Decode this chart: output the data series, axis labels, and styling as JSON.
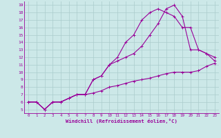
{
  "xlabel": "Windchill (Refroidissement éolien,°C)",
  "bg_color": "#cce8e8",
  "grid_color": "#aacccc",
  "line_color": "#990099",
  "xlim": [
    -0.5,
    23.5
  ],
  "ylim": [
    4.5,
    19.5
  ],
  "xticks": [
    0,
    1,
    2,
    3,
    4,
    5,
    6,
    7,
    8,
    9,
    10,
    11,
    12,
    13,
    14,
    15,
    16,
    17,
    18,
    19,
    20,
    21,
    22,
    23
  ],
  "yticks": [
    5,
    6,
    7,
    8,
    9,
    10,
    11,
    12,
    13,
    14,
    15,
    16,
    17,
    18,
    19
  ],
  "lines": [
    {
      "x": [
        0,
        1,
        2,
        3,
        4,
        5,
        6,
        7,
        8,
        9,
        10,
        11,
        12,
        13,
        14,
        15,
        16,
        17,
        18,
        19,
        20,
        21,
        22,
        23
      ],
      "y": [
        6,
        6,
        5,
        6,
        6,
        6.5,
        7,
        7,
        7.2,
        7.5,
        8,
        8.2,
        8.5,
        8.8,
        9,
        9.2,
        9.5,
        9.8,
        10,
        10,
        10,
        10.2,
        10.8,
        11.2
      ]
    },
    {
      "x": [
        0,
        1,
        2,
        3,
        4,
        5,
        6,
        7,
        8,
        9,
        10,
        11,
        12,
        13,
        14,
        15,
        16,
        17,
        18,
        19,
        20,
        21,
        22,
        23
      ],
      "y": [
        6,
        6,
        5,
        6,
        6,
        6.5,
        7,
        7,
        9,
        9.5,
        11,
        11.5,
        12,
        12.5,
        13.5,
        15,
        16.5,
        18.5,
        19,
        17.5,
        13,
        13,
        12.5,
        12
      ]
    },
    {
      "x": [
        0,
        1,
        2,
        3,
        4,
        5,
        6,
        7,
        8,
        9,
        10,
        11,
        12,
        13,
        14,
        15,
        16,
        17,
        18,
        19,
        20,
        21,
        22,
        23
      ],
      "y": [
        6,
        6,
        5,
        6,
        6,
        6.5,
        7,
        7,
        9,
        9.5,
        11,
        12,
        14,
        15,
        17,
        18,
        18.5,
        18,
        17.5,
        16,
        16,
        13,
        12.5,
        11.5
      ]
    }
  ]
}
